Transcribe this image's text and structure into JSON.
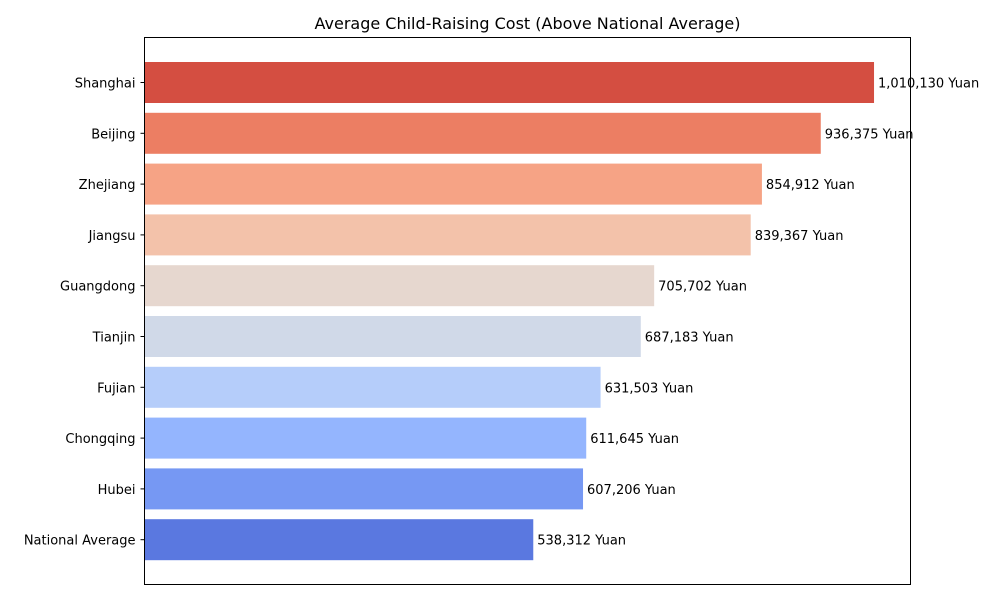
{
  "chart_data": {
    "type": "bar",
    "orientation": "horizontal",
    "title": "Average Child-Raising Cost (Above National Average)",
    "xlabel": "",
    "ylabel": "",
    "xlim": [
      0,
      1060636.5
    ],
    "grid": false,
    "legend": "none",
    "x_axis_ticks_visible": false,
    "value_suffix": " Yuan",
    "categories": [
      "Shanghai",
      "Beijing",
      "Zhejiang",
      "Jiangsu",
      "Guangdong",
      "Tianjin",
      "Fujian",
      "Chongqing",
      "Hubei",
      "National Average"
    ],
    "values": [
      1010130,
      936375,
      854912,
      839367,
      705702,
      687183,
      631503,
      611645,
      607206,
      538312
    ],
    "data_labels": [
      "1,010,130 Yuan",
      "936,375 Yuan",
      "854,912 Yuan",
      "839,367 Yuan",
      "705,702 Yuan",
      "687,183 Yuan",
      "631,503 Yuan",
      "611,645 Yuan",
      "607,206 Yuan",
      "538,312 Yuan"
    ],
    "colors": [
      "#d44e41",
      "#ec7e63",
      "#f6a385",
      "#f3c2aa",
      "#e6d7cf",
      "#d0d9e8",
      "#b5cdfa",
      "#94b5fe",
      "#7698f3",
      "#5a78e0"
    ]
  }
}
